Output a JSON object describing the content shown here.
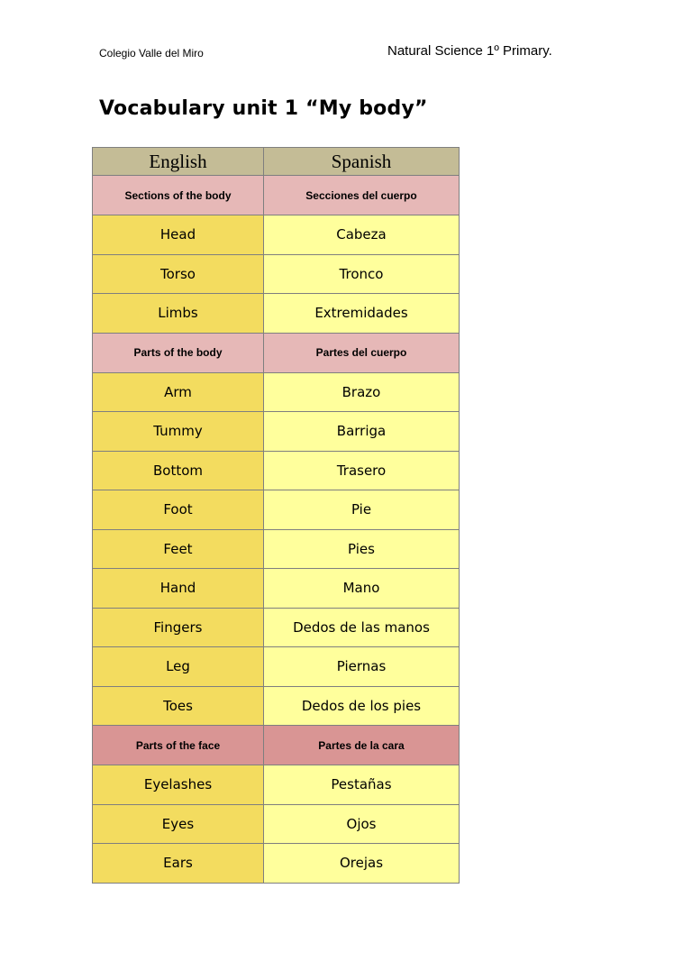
{
  "header": {
    "school": "Colegio Valle del Miro",
    "subject": "Natural Science 1º Primary."
  },
  "title": "Vocabulary unit 1 “My body”",
  "colors": {
    "header": "#c4bc96",
    "section_body": "#e6b8b7",
    "section_face": "#d99594",
    "english_cell": "#f3dc5f",
    "spanish_cell": "#ffff9c"
  },
  "table": {
    "columns": [
      "English",
      "Spanish"
    ],
    "rows": [
      {
        "type": "section",
        "en": "Sections of the body",
        "es": "Secciones del cuerpo"
      },
      {
        "type": "word",
        "en": "Head",
        "es": "Cabeza"
      },
      {
        "type": "word",
        "en": "Torso",
        "es": "Tronco"
      },
      {
        "type": "word",
        "en": "Limbs",
        "es": "Extremidades"
      },
      {
        "type": "section",
        "en": "Parts of the body",
        "es": "Partes del cuerpo"
      },
      {
        "type": "word",
        "en": "Arm",
        "es": "Brazo"
      },
      {
        "type": "word",
        "en": "Tummy",
        "es": "Barriga"
      },
      {
        "type": "word",
        "en": "Bottom",
        "es": "Trasero"
      },
      {
        "type": "word",
        "en": "Foot",
        "es": "Pie"
      },
      {
        "type": "word",
        "en": "Feet",
        "es": "Pies"
      },
      {
        "type": "word",
        "en": "Hand",
        "es": "Mano"
      },
      {
        "type": "word",
        "en": "Fingers",
        "es": "Dedos de las manos"
      },
      {
        "type": "word",
        "en": "Leg",
        "es": "Piernas"
      },
      {
        "type": "word",
        "en": "Toes",
        "es": "Dedos de los pies"
      },
      {
        "type": "section2",
        "en": "Parts of the face",
        "es": "Partes de la cara"
      },
      {
        "type": "word",
        "en": "Eyelashes",
        "es": "Pestañas"
      },
      {
        "type": "word",
        "en": "Eyes",
        "es": "Ojos"
      },
      {
        "type": "word",
        "en": "Ears",
        "es": "Orejas"
      }
    ]
  }
}
